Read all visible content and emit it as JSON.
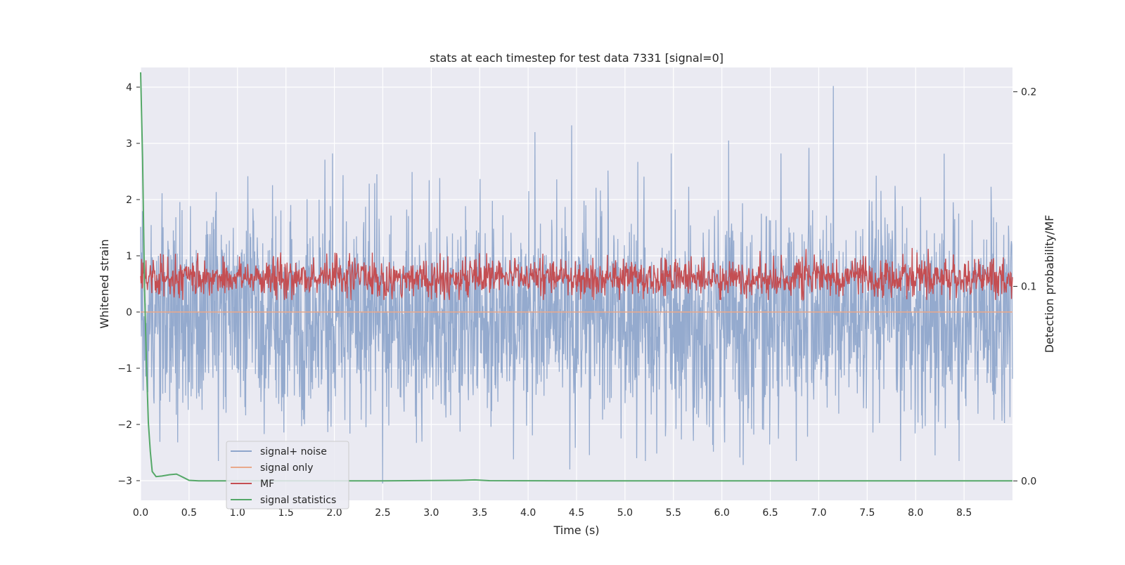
{
  "chart_data": {
    "type": "line",
    "title": "stats at each timestep for test data 7331 [signal=0]",
    "xlabel": "Time (s)",
    "ylabel": "Whitened strain",
    "y2label": "Detection probability/MF",
    "xlim": [
      0.0,
      9.0
    ],
    "ylim": [
      -3.35,
      4.35
    ],
    "y2lim": [
      -0.01,
      0.2125
    ],
    "xticks": [
      "0.0",
      "0.5",
      "1.0",
      "1.5",
      "2.0",
      "2.5",
      "3.0",
      "3.5",
      "4.0",
      "4.5",
      "5.0",
      "5.5",
      "6.0",
      "6.5",
      "7.0",
      "7.5",
      "8.0",
      "8.5"
    ],
    "xtick_values": [
      0.0,
      0.5,
      1.0,
      1.5,
      2.0,
      2.5,
      3.0,
      3.5,
      4.0,
      4.5,
      5.0,
      5.5,
      6.0,
      6.5,
      7.0,
      7.5,
      8.0,
      8.5
    ],
    "yticks": [
      "−3",
      "−2",
      "−1",
      "0",
      "1",
      "2",
      "3",
      "4"
    ],
    "ytick_values": [
      -3,
      -2,
      -1,
      0,
      1,
      2,
      3,
      4
    ],
    "y2ticks": [
      "0.0",
      "0.1",
      "0.2"
    ],
    "y2tick_values": [
      0.0,
      0.1,
      0.2
    ],
    "grid": true,
    "legend_position": "lower-left",
    "series": [
      {
        "name": "signal+ noise",
        "axis": "left",
        "color": "#8fa6cb",
        "kind": "noise",
        "typical_range": [
          -1.6,
          1.4
        ],
        "extreme_range": [
          -3.05,
          4.02
        ],
        "peaks": [
          {
            "x": 7.15,
            "y": 4.02
          },
          {
            "x": 4.45,
            "y": 3.32
          },
          {
            "x": 4.07,
            "y": 3.2
          },
          {
            "x": 6.07,
            "y": 3.05
          },
          {
            "x": 6.9,
            "y": 2.92
          },
          {
            "x": 1.98,
            "y": 2.82
          },
          {
            "x": 2.5,
            "y": -3.05
          },
          {
            "x": 4.43,
            "y": -2.8
          },
          {
            "x": 6.22,
            "y": -2.72
          },
          {
            "x": 8.45,
            "y": -2.65
          },
          {
            "x": 8.2,
            "y": -2.55
          },
          {
            "x": 5.12,
            "y": -2.6
          },
          {
            "x": 3.85,
            "y": -2.62
          }
        ]
      },
      {
        "name": "signal only",
        "axis": "left",
        "color": "#e9a88a",
        "kind": "flat",
        "value": 0.0
      },
      {
        "name": "MF",
        "axis": "right",
        "color": "#c44e52",
        "kind": "noise",
        "typical_range": [
          0.095,
          0.112
        ],
        "extreme_range": [
          0.093,
          0.123
        ]
      },
      {
        "name": "signal statistics",
        "axis": "right",
        "color": "#55a868",
        "kind": "curve",
        "x": [
          0.0,
          0.02,
          0.04,
          0.06,
          0.08,
          0.1,
          0.12,
          0.16,
          0.22,
          0.3,
          0.37,
          0.44,
          0.5,
          0.6,
          0.8,
          1.5,
          2.5,
          3.3,
          3.45,
          3.6,
          4.5,
          6.0,
          8.0,
          9.0
        ],
        "values": [
          0.21,
          0.165,
          0.1,
          0.06,
          0.03,
          0.015,
          0.0048,
          0.0022,
          0.0025,
          0.0032,
          0.0035,
          0.0018,
          0.0003,
          0.0,
          0.0,
          0.0,
          0.0,
          0.0003,
          0.0005,
          0.0001,
          0.0,
          0.0,
          0.0,
          0.0
        ]
      }
    ]
  }
}
